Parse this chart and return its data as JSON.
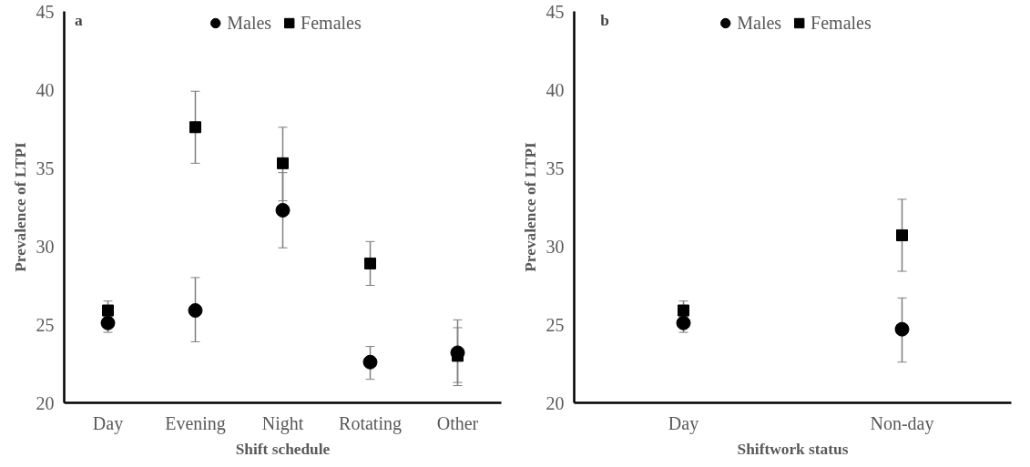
{
  "chart_data": [
    {
      "type": "scatter",
      "annotations": [
        "a"
      ],
      "xlabel": "Shift schedule",
      "ylabel": "Prevalence of LTPI",
      "categories": [
        "Day",
        "Evening",
        "Night",
        "Rotating",
        "Other"
      ],
      "ylim": [
        20,
        45
      ],
      "yticks": [
        20,
        25,
        30,
        35,
        40,
        45
      ],
      "grid": false,
      "legend": "top",
      "series": [
        {
          "name": "Males",
          "color": "#000000",
          "marker": "circle",
          "values": [
            25.1,
            25.9,
            32.3,
            22.6,
            23.2
          ],
          "errors": [
            [
              24.5,
              25.6
            ],
            [
              23.9,
              28.0
            ],
            [
              29.9,
              34.7
            ],
            [
              21.5,
              23.6
            ],
            [
              21.3,
              25.3
            ]
          ]
        },
        {
          "name": "Females",
          "color": "#000000",
          "marker": "square",
          "values": [
            25.9,
            37.6,
            35.3,
            28.9,
            23.0
          ],
          "errors": [
            [
              25.5,
              26.5
            ],
            [
              35.3,
              39.9
            ],
            [
              32.9,
              37.6
            ],
            [
              27.5,
              30.3
            ],
            [
              21.1,
              24.8
            ]
          ]
        }
      ]
    },
    {
      "type": "scatter",
      "annotations": [
        "b"
      ],
      "xlabel": "Shiftwork status",
      "ylabel": "Prevalence of LTPI",
      "categories": [
        "Day",
        "Non-day"
      ],
      "ylim": [
        20,
        45
      ],
      "yticks": [
        20,
        25,
        30,
        35,
        40,
        45
      ],
      "grid": false,
      "legend": "top",
      "series": [
        {
          "name": "Males",
          "color": "#000000",
          "marker": "circle",
          "values": [
            25.1,
            24.7
          ],
          "errors": [
            [
              24.5,
              25.6
            ],
            [
              22.6,
              26.7
            ]
          ]
        },
        {
          "name": "Females",
          "color": "#000000",
          "marker": "square",
          "values": [
            25.9,
            30.7
          ],
          "errors": [
            [
              25.5,
              26.5
            ],
            [
              28.4,
              33.0
            ]
          ]
        }
      ]
    }
  ]
}
